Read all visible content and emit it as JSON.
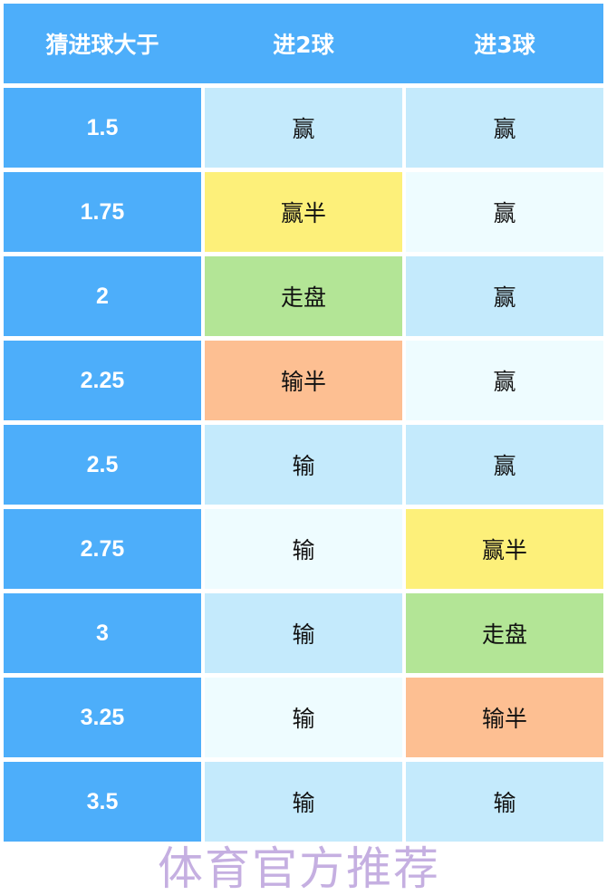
{
  "header": [
    "猜进球大于",
    "进2球",
    "进3球"
  ],
  "colors": {
    "header": "#4daefa",
    "row_odd": "#c4eafc",
    "row_even": "#eefcff",
    "win_half": "#fdf07a",
    "push": "#b3e596",
    "lose_half": "#fdbf92"
  },
  "rows": [
    [
      "1.5",
      "赢",
      "赢"
    ],
    [
      "1.75",
      "赢半",
      "赢"
    ],
    [
      "2",
      "走盘",
      "赢"
    ],
    [
      "2.25",
      "输半",
      "赢"
    ],
    [
      "2.5",
      "输",
      "赢"
    ],
    [
      "2.75",
      "输",
      "赢半"
    ],
    [
      "3",
      "输",
      "走盘"
    ],
    [
      "3.25",
      "输",
      "输半"
    ],
    [
      "3.5",
      "输",
      "输"
    ]
  ],
  "watermark": "体育官方推荐"
}
